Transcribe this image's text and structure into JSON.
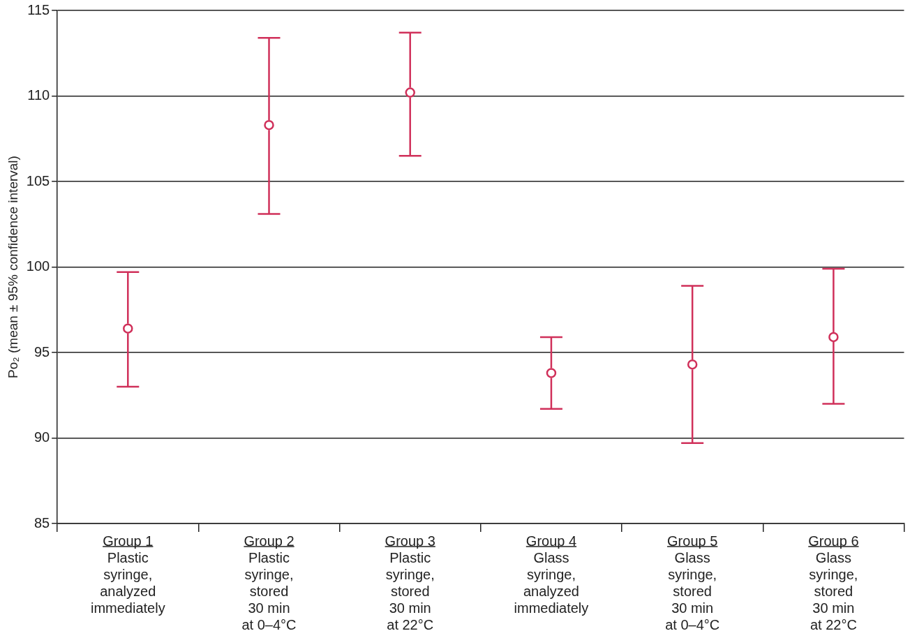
{
  "chart_data": {
    "type": "scatter",
    "ylabel": "Po₂ (mean ± 95% confidence interval)",
    "categories": [
      "Group 1\nPlastic\nsyringe,\nanalyzed\nimmediately",
      "Group 2\nPlastic\nsyringe,\nstored\n30 min\nat 0–4°C",
      "Group 3\nPlastic\nsyringe,\nstored\n30 min\nat 22°C",
      "Group 4\nGlass\nsyringe,\nanalyzed\nimmediately",
      "Group 5\nGlass\nsyringe,\nstored\n30 min\nat 0–4°C",
      "Group 6\nGlass\nsyringe,\nstored\n30 min\nat 22°C"
    ],
    "values": [
      96.4,
      108.3,
      110.2,
      93.8,
      94.3,
      95.9
    ],
    "errors": [
      [
        93.0,
        99.7
      ],
      [
        103.1,
        113.4
      ],
      [
        106.5,
        113.7
      ],
      [
        91.7,
        95.9
      ],
      [
        89.7,
        98.9
      ],
      [
        92.0,
        99.9
      ]
    ],
    "color": "#d0305a",
    "marker": "circle",
    "ylim": [
      85,
      115
    ],
    "yticks": [
      85,
      90,
      95,
      100,
      105,
      110,
      115
    ],
    "grid": "y"
  }
}
